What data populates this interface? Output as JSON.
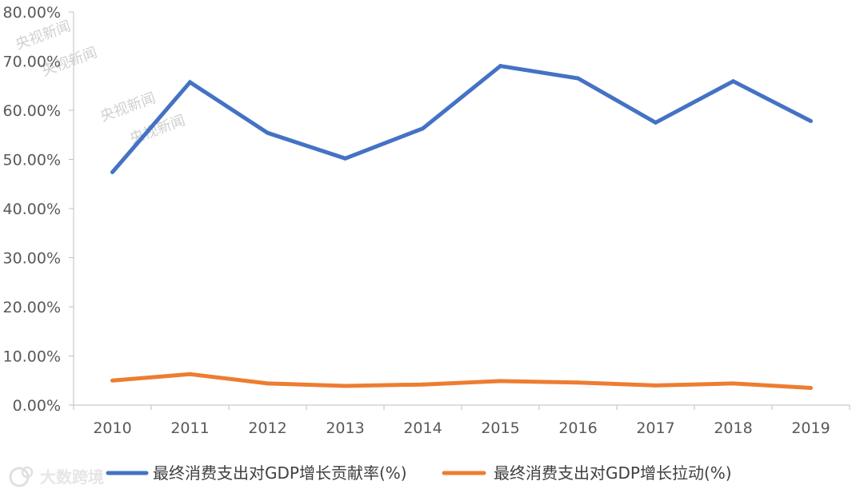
{
  "chart_data": {
    "type": "line",
    "title": "",
    "xlabel": "",
    "ylabel": "",
    "x": [
      "2010",
      "2011",
      "2012",
      "2013",
      "2014",
      "2015",
      "2016",
      "2017",
      "2018",
      "2019"
    ],
    "y_ticks": [
      "0.00%",
      "10.00%",
      "20.00%",
      "30.00%",
      "40.00%",
      "50.00%",
      "60.00%",
      "70.00%",
      "80.00%"
    ],
    "ylim": [
      0,
      80
    ],
    "grid": false,
    "legend_position": "bottom",
    "series": [
      {
        "name": "最终消费支出对GDP增长贡献率(%)",
        "color": "#4472c4",
        "values": [
          47.4,
          65.7,
          55.4,
          50.2,
          56.3,
          69.0,
          66.5,
          57.5,
          65.9,
          57.8
        ]
      },
      {
        "name": "最终消费支出对GDP增长拉动(%)",
        "color": "#ed7d31",
        "values": [
          5.0,
          6.3,
          4.4,
          3.9,
          4.2,
          4.9,
          4.6,
          4.0,
          4.4,
          3.5
        ]
      }
    ]
  },
  "watermarks": [
    "央视新闻",
    "央视新闻",
    "央视新闻",
    "央视新闻"
  ],
  "logo_text": "大数跨境"
}
